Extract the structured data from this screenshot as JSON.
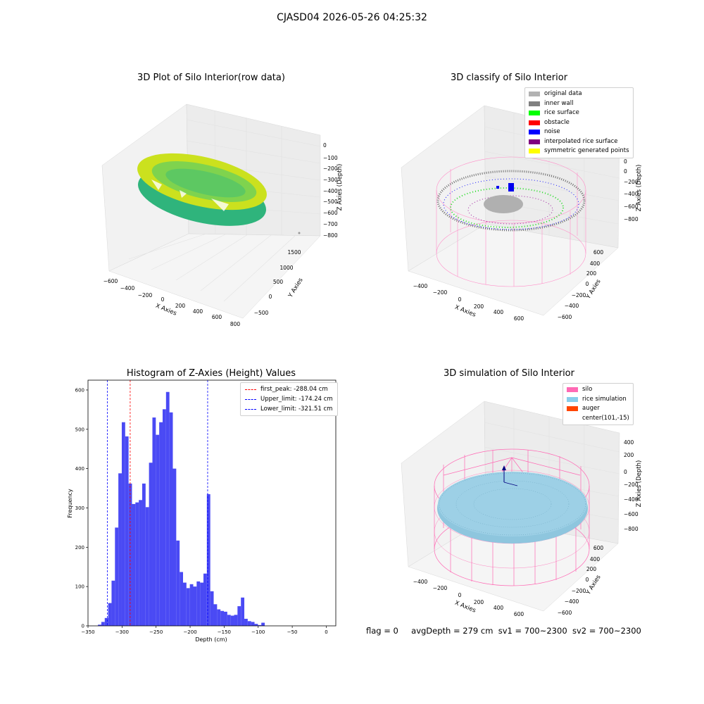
{
  "figure_title": "CJASD04 2026-05-26 04:25:32",
  "footer": {
    "flag": "flag = 0",
    "avg": "avgDepth = 279 cm",
    "sv1": "sv1 = 700~2300",
    "sv2": "sv2 = 700~2300"
  },
  "panels": {
    "raw": {
      "title": "3D Plot of Silo Interior(row data)",
      "xlabel": "X Axies",
      "ylabel": "Y Axies",
      "zlabel": "Z Axies (Depth)",
      "xticks": [
        "−600",
        "−400",
        "−200",
        "0",
        "200",
        "400",
        "600",
        "800"
      ],
      "yticks": [
        "1500",
        "1000",
        "500",
        "0",
        "−500"
      ],
      "zticks": [
        "0",
        "−100",
        "−200",
        "−300",
        "−400",
        "−500",
        "−600",
        "−700",
        "−800"
      ]
    },
    "classify": {
      "title": "3D classify of Silo Interior",
      "xlabel": "X Axies",
      "ylabel": "Y Axies",
      "zlabel": "Z Axies (Depth)",
      "xticks": [
        "−400",
        "−200",
        "0",
        "200",
        "400",
        "600"
      ],
      "yticks": [
        "600",
        "400",
        "200",
        "0",
        "−200",
        "−400",
        "−600"
      ],
      "zticks": [
        "200",
        "0",
        "−200",
        "−400",
        "−600",
        "−800"
      ],
      "legend": [
        {
          "label": "original data",
          "color": "#b2b2b2"
        },
        {
          "label": "inner wall",
          "color": "#808080"
        },
        {
          "label": "rice surface",
          "color": "#00ff00"
        },
        {
          "label": "obstacle",
          "color": "#ff0000"
        },
        {
          "label": "noise",
          "color": "#0000ff"
        },
        {
          "label": "interpolated rice surface",
          "color": "#800080"
        },
        {
          "label": "symmetric generated points",
          "color": "#ffff00"
        }
      ]
    },
    "simulation": {
      "title": "3D simulation of Silo Interior",
      "xlabel": "X Axies",
      "ylabel": "Y Axies",
      "zlabel": "Z Axies (Depth)",
      "xticks": [
        "−400",
        "−200",
        "0",
        "200",
        "400",
        "600"
      ],
      "yticks": [
        "600",
        "400",
        "200",
        "0",
        "−200",
        "−400",
        "−600"
      ],
      "zticks": [
        "400",
        "200",
        "0",
        "−200",
        "−400",
        "−600",
        "−800"
      ],
      "legend": [
        {
          "label": "silo",
          "color": "#ff69b4"
        },
        {
          "label": "rice simulation",
          "color": "#87ceeb"
        },
        {
          "label": "auger",
          "color": "#ff4500"
        },
        {
          "label": "center(101,-15)",
          "color": ""
        }
      ]
    }
  },
  "chart_data": {
    "type": "bar",
    "title": "Histogram of Z-Axies (Height) Values",
    "xlabel": "Depth (cm)",
    "ylabel": "Frequency",
    "xlim": [
      -350,
      14
    ],
    "ylim": [
      0,
      625
    ],
    "xticks": [
      -350,
      -300,
      -250,
      -200,
      -150,
      -100,
      -50,
      0
    ],
    "yticks": [
      0,
      100,
      200,
      300,
      400,
      500,
      600
    ],
    "bar_color": "#4a4af4",
    "bin_edges_start": -335.4,
    "bin_width": 5.0,
    "values": [
      3,
      10,
      20,
      58,
      115,
      250,
      388,
      518,
      482,
      362,
      310,
      314,
      320,
      362,
      302,
      415,
      530,
      486,
      518,
      551,
      595,
      543,
      400,
      217,
      137,
      110,
      96,
      106,
      100,
      113,
      110,
      133,
      335,
      88,
      55,
      42,
      38,
      36,
      28,
      26,
      28,
      50,
      72,
      18,
      12,
      10,
      5,
      2,
      8
    ],
    "vlines": [
      {
        "label": "first_peak: -288.04 cm",
        "x": -288.04,
        "color": "#ff0000"
      },
      {
        "label": "Upper_limit: -174.24 cm",
        "x": -174.24,
        "color": "#0000ff"
      },
      {
        "label": "Lower_limit: -321.51 cm",
        "x": -321.51,
        "color": "#0000ff"
      }
    ],
    "grid": false,
    "legend_position": "top-right"
  }
}
